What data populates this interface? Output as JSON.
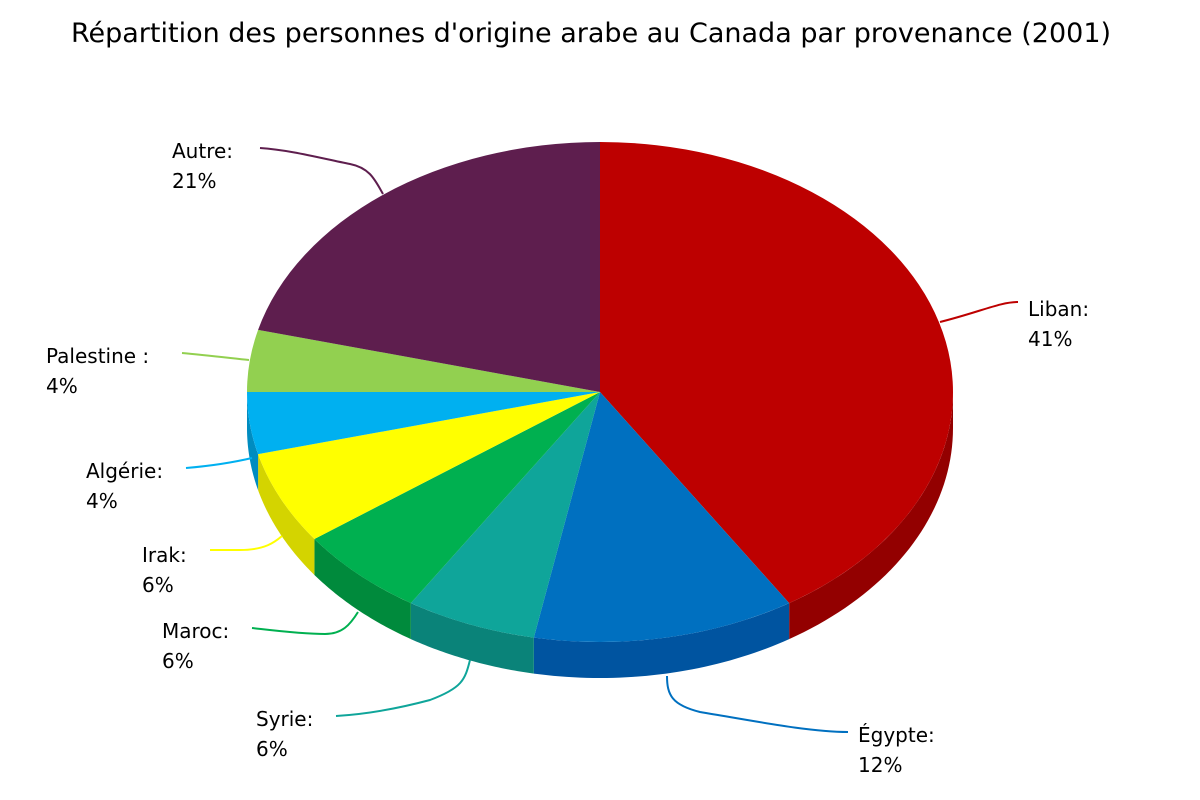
{
  "chart_data": {
    "type": "pie",
    "style": "3d-exploded-tilt",
    "title": "Répartition des personnes d'origine arabe au Canada par provenance (2001)",
    "slices": [
      {
        "name": "Liban:",
        "pct_label": "41%",
        "value": 41,
        "color": "#BD0000",
        "side_color": "#930000",
        "label_side": "right"
      },
      {
        "name": "Égypte:",
        "pct_label": "12%",
        "value": 12,
        "color": "#0070C0",
        "side_color": "#0054A0",
        "label_side": "right"
      },
      {
        "name": "Syrie:",
        "pct_label": "6%",
        "value": 6,
        "color": "#0FA59A",
        "side_color": "#0A8379",
        "label_side": "left"
      },
      {
        "name": "Maroc:",
        "pct_label": "6%",
        "value": 6,
        "color": "#00B050",
        "side_color": "#008A3C",
        "label_side": "left"
      },
      {
        "name": "Irak:",
        "pct_label": "6%",
        "value": 6,
        "color": "#FFFF00",
        "side_color": "#D4D400",
        "label_side": "left"
      },
      {
        "name": "Algérie:",
        "pct_label": "4%",
        "value": 4,
        "color": "#00B0F0",
        "side_color": "#008CC0",
        "label_side": "left"
      },
      {
        "name": "Palestine :",
        "pct_label": "4%",
        "value": 4,
        "color": "#92D050",
        "side_color": "#74A83E",
        "label_side": "left"
      },
      {
        "name": "Autre:",
        "pct_label": "21%",
        "value": 21,
        "color": "#5E1E4E",
        "side_color": "#44153A",
        "label_side": "left"
      }
    ]
  }
}
